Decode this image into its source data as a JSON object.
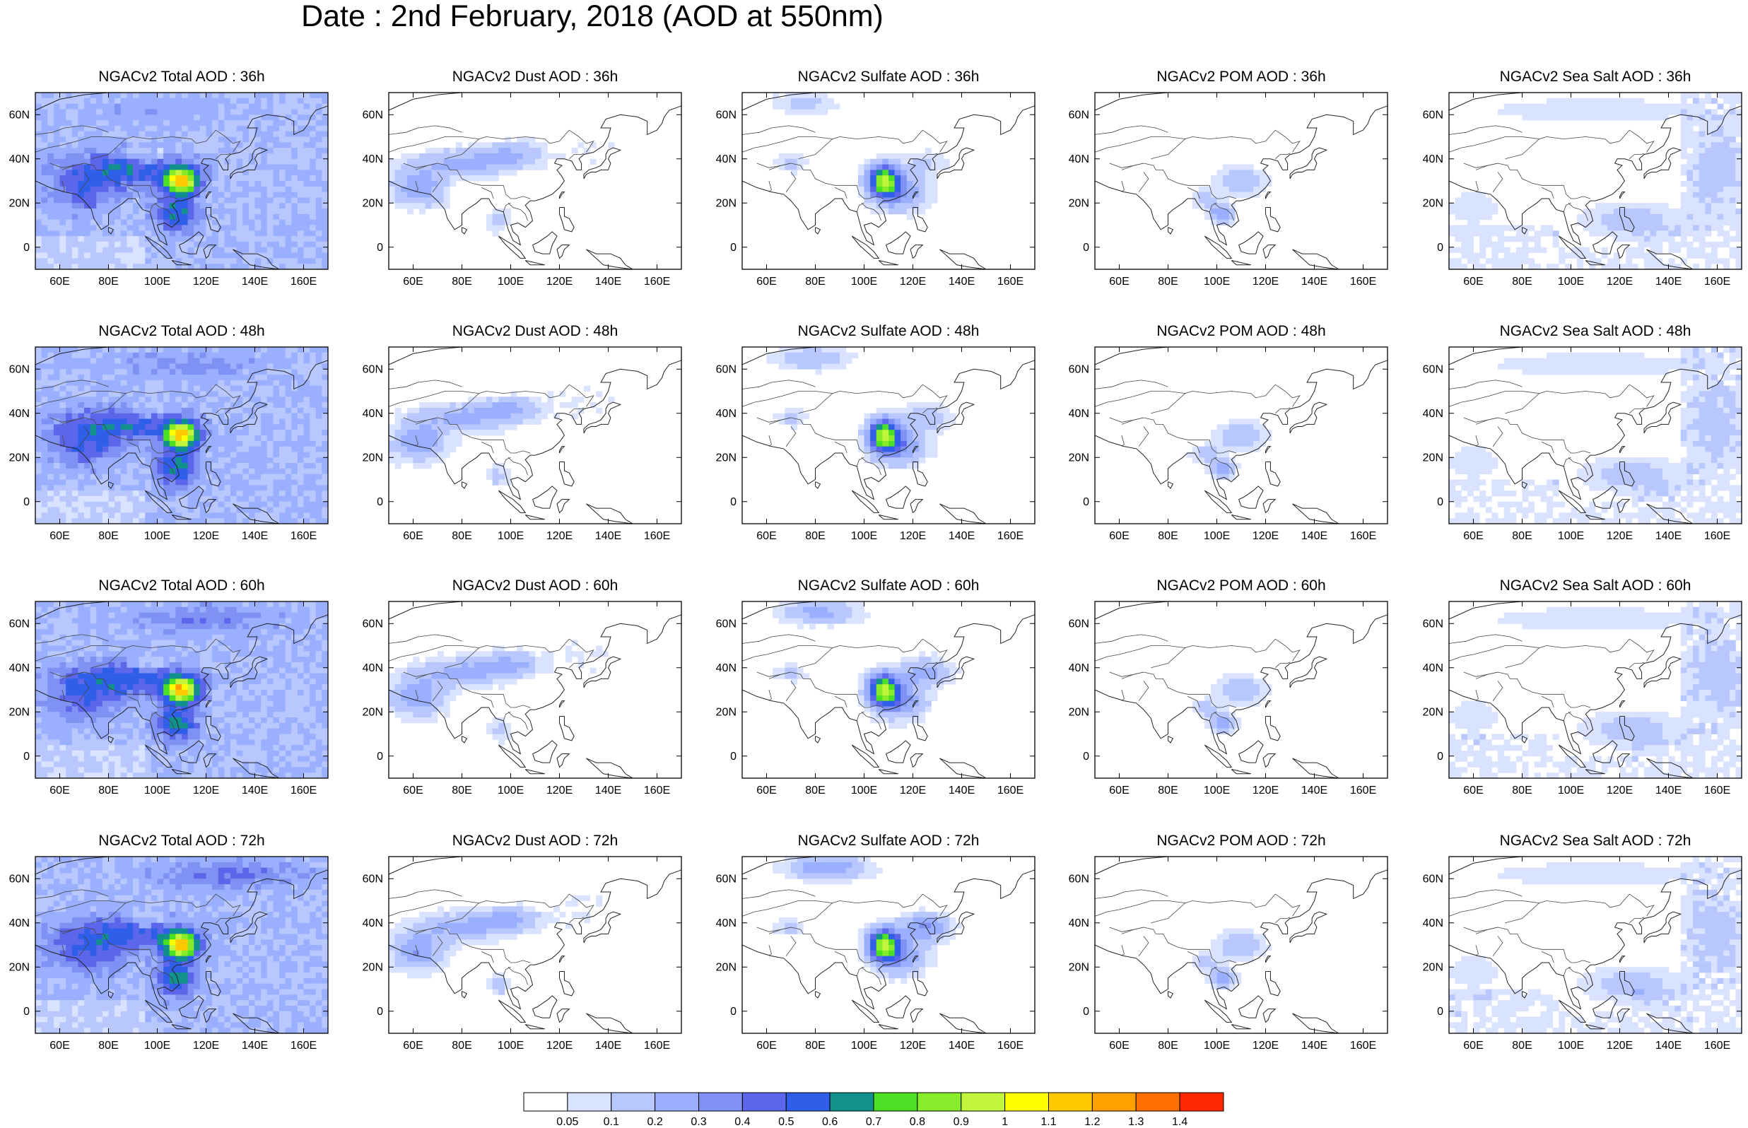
{
  "title": "Date : 2nd February, 2018 (AOD at 550nm)",
  "chart_data": {
    "type": "heatmap",
    "layout": {
      "rows": 4,
      "cols": 5
    },
    "x_ticks": [
      "60E",
      "80E",
      "100E",
      "120E",
      "140E",
      "160E"
    ],
    "x_tick_values": [
      60,
      80,
      100,
      120,
      140,
      160
    ],
    "y_ticks": [
      "60N",
      "40N",
      "20N",
      "0"
    ],
    "y_tick_values": [
      60,
      40,
      20,
      0
    ],
    "xlim": [
      50,
      170
    ],
    "ylim": [
      -10,
      70
    ],
    "colorbar": {
      "levels": [
        "0.05",
        "0.1",
        "0.2",
        "0.3",
        "0.4",
        "0.5",
        "0.6",
        "0.7",
        "0.8",
        "0.9",
        "1",
        "1.1",
        "1.2",
        "1.3",
        "1.4"
      ],
      "colors": [
        "#ffffff",
        "#d9e2ff",
        "#b8c8ff",
        "#9aafff",
        "#7f92f4",
        "#5c66ea",
        "#2f5fe8",
        "#11908c",
        "#4ce024",
        "#88ec2a",
        "#c3f53c",
        "#ffff00",
        "#ffc800",
        "#ffa000",
        "#ff7000",
        "#ff2800"
      ]
    },
    "panels": [
      {
        "title": "NGACv2 Total AOD : 36h",
        "species": "total",
        "forecast_hour": 36
      },
      {
        "title": "NGACv2 Dust AOD : 36h",
        "species": "dust",
        "forecast_hour": 36
      },
      {
        "title": "NGACv2 Sulfate AOD : 36h",
        "species": "sulfate",
        "forecast_hour": 36
      },
      {
        "title": "NGACv2 POM AOD : 36h",
        "species": "pom",
        "forecast_hour": 36
      },
      {
        "title": "NGACv2 Sea Salt AOD : 36h",
        "species": "seasalt",
        "forecast_hour": 36
      },
      {
        "title": "NGACv2 Total AOD : 48h",
        "species": "total",
        "forecast_hour": 48
      },
      {
        "title": "NGACv2 Dust AOD : 48h",
        "species": "dust",
        "forecast_hour": 48
      },
      {
        "title": "NGACv2 Sulfate AOD : 48h",
        "species": "sulfate",
        "forecast_hour": 48
      },
      {
        "title": "NGACv2 POM AOD : 48h",
        "species": "pom",
        "forecast_hour": 48
      },
      {
        "title": "NGACv2 Sea Salt AOD : 48h",
        "species": "seasalt",
        "forecast_hour": 48
      },
      {
        "title": "NGACv2 Total AOD : 60h",
        "species": "total",
        "forecast_hour": 60
      },
      {
        "title": "NGACv2 Dust AOD : 60h",
        "species": "dust",
        "forecast_hour": 60
      },
      {
        "title": "NGACv2 Sulfate AOD : 60h",
        "species": "sulfate",
        "forecast_hour": 60
      },
      {
        "title": "NGACv2 POM AOD : 60h",
        "species": "pom",
        "forecast_hour": 60
      },
      {
        "title": "NGACv2 Sea Salt AOD : 60h",
        "species": "seasalt",
        "forecast_hour": 60
      },
      {
        "title": "NGACv2 Total AOD : 72h",
        "species": "total",
        "forecast_hour": 72
      },
      {
        "title": "NGACv2 Dust AOD : 72h",
        "species": "dust",
        "forecast_hour": 72
      },
      {
        "title": "NGACv2 Sulfate AOD : 72h",
        "species": "sulfate",
        "forecast_hour": 72
      },
      {
        "title": "NGACv2 POM AOD : 72h",
        "species": "pom",
        "forecast_hour": 72
      },
      {
        "title": "NGACv2 Sea Salt  AOD : 72h",
        "species": "seasalt",
        "forecast_hour": 72
      }
    ]
  }
}
